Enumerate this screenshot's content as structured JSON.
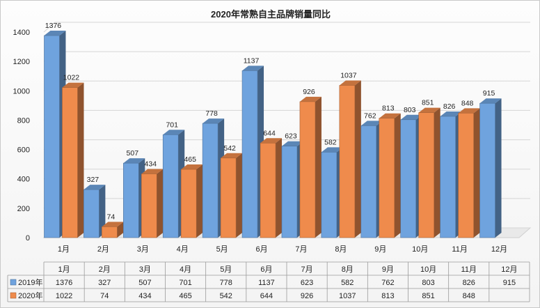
{
  "colors": {
    "series_2019": "#6fa3de",
    "series_2020": "#ef8b4c"
  },
  "chart_data": {
    "type": "bar",
    "title": "2020年常熟自主品牌销量同比",
    "categories": [
      "1月",
      "2月",
      "3月",
      "4月",
      "5月",
      "6月",
      "7月",
      "8月",
      "9月",
      "10月",
      "11月",
      "12月"
    ],
    "series": [
      {
        "name": "2019年",
        "values": [
          1376,
          327,
          507,
          701,
          778,
          1137,
          623,
          582,
          762,
          803,
          826,
          915
        ]
      },
      {
        "name": "2020年",
        "values": [
          1022,
          74,
          434,
          465,
          542,
          644,
          926,
          1037,
          813,
          851,
          848,
          null
        ]
      }
    ],
    "ylim": [
      0,
      1400
    ],
    "yticks": [
      0,
      200,
      400,
      600,
      800,
      1000,
      1200,
      1400
    ],
    "grid": true,
    "data_table": true,
    "legend": "data table (left)"
  }
}
